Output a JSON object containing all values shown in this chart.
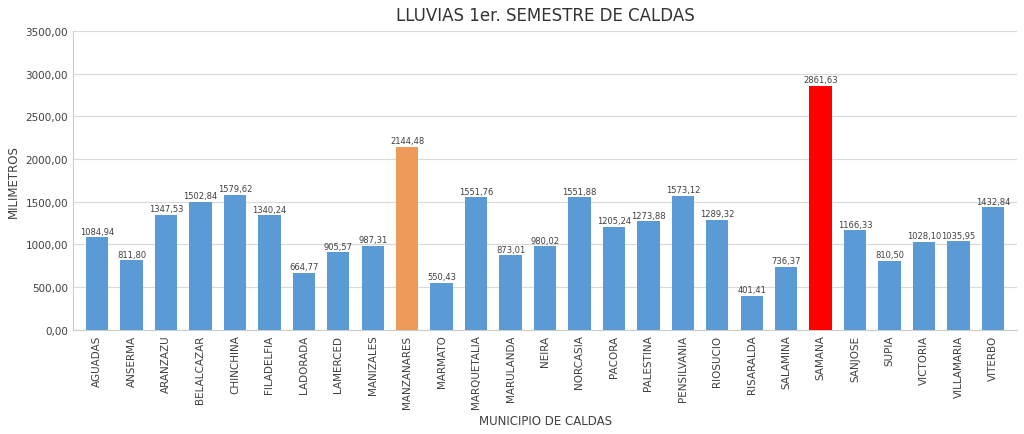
{
  "title": "LLUVIAS 1er. SEMESTRE DE CALDAS",
  "xlabel": "MUNICIPIO DE CALDAS",
  "ylabel": "MILIMETROS",
  "categories": [
    "AGUADAS",
    "ANSERMA",
    "ARANZAZU",
    "BELALCAZAR",
    "CHINCHINA",
    "FILADELFIA",
    "LADORADA",
    "LAMERCED",
    "MANIZALES",
    "MANZANARES",
    "MARMATO",
    "MARQUETALIA",
    "MARULANDA",
    "NEIRA",
    "NORCASIA",
    "PACORA",
    "PALESTINA",
    "PENSILVANIA",
    "RIOSUCIO",
    "RISARALDA",
    "SALAMINA",
    "SAMANA",
    "SANJOSE",
    "SUPIA",
    "VICTORIA",
    "VILLAMARIA",
    "VITERBO"
  ],
  "values": [
    1084.94,
    811.8,
    1347.53,
    1502.84,
    1579.62,
    1340.24,
    664.77,
    905.57,
    987.31,
    2144.48,
    550.43,
    1551.76,
    873.01,
    980.02,
    1551.88,
    1205.24,
    1273.88,
    1573.12,
    1289.32,
    401.41,
    736.37,
    2861.63,
    1166.33,
    810.5,
    1028.1,
    1035.95,
    1432.84
  ],
  "bar_colors": [
    "#5B9BD5",
    "#5B9BD5",
    "#5B9BD5",
    "#5B9BD5",
    "#5B9BD5",
    "#5B9BD5",
    "#5B9BD5",
    "#5B9BD5",
    "#5B9BD5",
    "#ED9B5B",
    "#5B9BD5",
    "#5B9BD5",
    "#5B9BD5",
    "#5B9BD5",
    "#5B9BD5",
    "#5B9BD5",
    "#5B9BD5",
    "#5B9BD5",
    "#5B9BD5",
    "#5B9BD5",
    "#5B9BD5",
    "#FF0000",
    "#5B9BD5",
    "#5B9BD5",
    "#5B9BD5",
    "#5B9BD5",
    "#5B9BD5"
  ],
  "ylim": [
    0,
    3500
  ],
  "yticks": [
    0,
    500,
    1000,
    1500,
    2000,
    2500,
    3000,
    3500
  ],
  "background_color": "#FFFFFF",
  "grid_color": "#D9D9D9",
  "title_fontsize": 12,
  "label_fontsize": 7.5,
  "axis_label_fontsize": 8.5,
  "value_fontsize": 6.0
}
